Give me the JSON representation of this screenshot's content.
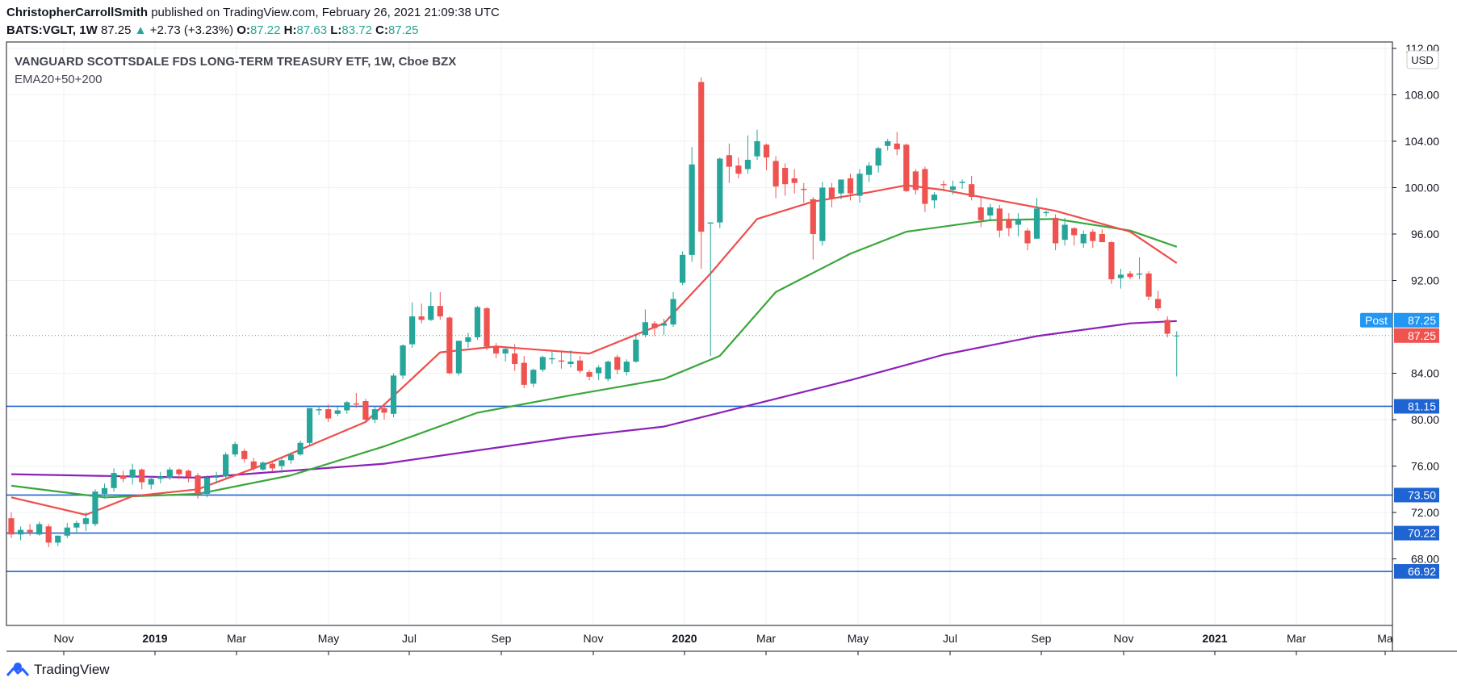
{
  "header": {
    "author": "ChristopherCarrollSmith",
    "published_text": "published on TradingView.com, February 26, 2021 21:09:38 UTC",
    "symbol_tf": "BATS:VGLT, 1W",
    "last": "87.25",
    "change": "+2.73 (+3.23%)",
    "o_label": "O:",
    "o": "87.22",
    "h_label": "H:",
    "h": "87.63",
    "l_label": "L:",
    "l": "83.72",
    "c_label": "C:",
    "c": "87.25"
  },
  "chart_data": {
    "type": "candlestick",
    "title": "VANGUARD SCOTTSDALE FDS LONG-TERM TREASURY ETF, 1W, Cboe BZX",
    "subtitle": "EMA20+50+200",
    "currency_label": "USD",
    "y_ticks": [
      "112.00",
      "108.00",
      "104.00",
      "100.00",
      "96.00",
      "92.00",
      "84.00",
      "80.00",
      "76.00",
      "72.00",
      "68.00"
    ],
    "x_ticks": [
      {
        "label": "Nov",
        "bold": false
      },
      {
        "label": "2019",
        "bold": true
      },
      {
        "label": "Mar",
        "bold": false
      },
      {
        "label": "May",
        "bold": false
      },
      {
        "label": "Jul",
        "bold": false
      },
      {
        "label": "Sep",
        "bold": false
      },
      {
        "label": "Nov",
        "bold": false
      },
      {
        "label": "2020",
        "bold": true
      },
      {
        "label": "Mar",
        "bold": false
      },
      {
        "label": "May",
        "bold": false
      },
      {
        "label": "Jul",
        "bold": false
      },
      {
        "label": "Sep",
        "bold": false
      },
      {
        "label": "Nov",
        "bold": false
      },
      {
        "label": "2021",
        "bold": true
      },
      {
        "label": "Mar",
        "bold": false
      },
      {
        "label": "Ma",
        "bold": false
      }
    ],
    "price_range": [
      64,
      113.5
    ],
    "horizontal_levels": [
      {
        "label": "81.15",
        "value": 81.15
      },
      {
        "label": "73.50",
        "value": 73.5
      },
      {
        "label": "70.22",
        "value": 70.22
      },
      {
        "label": "66.92",
        "value": 66.92
      }
    ],
    "post_label": "Post",
    "post_value": "87.25",
    "last_value": "87.25",
    "candles": [
      [
        71.5,
        72,
        69.8,
        70.1
      ],
      [
        70.1,
        70.8,
        69.6,
        70.5
      ],
      [
        70.5,
        71,
        70,
        70.3
      ],
      [
        70.1,
        71.2,
        70,
        71
      ],
      [
        70.8,
        71,
        69,
        69.4
      ],
      [
        69.4,
        70,
        69.1,
        70
      ],
      [
        70,
        71.1,
        69.8,
        70.7
      ],
      [
        70.7,
        71.3,
        70.2,
        71.1
      ],
      [
        71,
        72,
        70.4,
        71.5
      ],
      [
        71,
        74,
        70.8,
        73.8
      ],
      [
        73.6,
        74.5,
        73.2,
        74.1
      ],
      [
        74.1,
        75.8,
        73.8,
        75.4
      ],
      [
        75.2,
        75.6,
        74.6,
        74.9
      ],
      [
        75,
        76.2,
        74.4,
        75.7
      ],
      [
        75.7,
        75.8,
        74,
        74.6
      ],
      [
        74.4,
        75.1,
        74,
        74.9
      ],
      [
        74.9,
        75.5,
        74.5,
        75.1
      ],
      [
        75,
        75.9,
        74.8,
        75.7
      ],
      [
        75.7,
        75.8,
        74.9,
        75.3
      ],
      [
        75.6,
        75.7,
        74.6,
        75.1
      ],
      [
        75.2,
        75.4,
        73.2,
        73.6
      ],
      [
        73.6,
        75.2,
        73.3,
        75
      ],
      [
        75,
        75.5,
        74.5,
        75.1
      ],
      [
        75.1,
        77.2,
        74.9,
        77
      ],
      [
        77,
        78.1,
        76.8,
        77.9
      ],
      [
        77.3,
        77.5,
        76.3,
        76.6
      ],
      [
        76.4,
        76.7,
        75.6,
        75.8
      ],
      [
        75.7,
        76.4,
        75.6,
        76.3
      ],
      [
        76.2,
        76.3,
        75.5,
        75.8
      ],
      [
        76,
        76.7,
        75.4,
        76.5
      ],
      [
        76.5,
        77.1,
        76.2,
        77
      ],
      [
        77,
        78.2,
        76.9,
        78
      ],
      [
        78,
        81,
        77.8,
        81
      ],
      [
        80.8,
        81.2,
        80.4,
        80.9
      ],
      [
        80.9,
        81.3,
        79.8,
        80.1
      ],
      [
        80.5,
        81.1,
        80.3,
        80.8
      ],
      [
        80.8,
        81.6,
        80.5,
        81.5
      ],
      [
        81.4,
        82.3,
        81,
        81.3
      ],
      [
        81.6,
        81.8,
        79.8,
        80
      ],
      [
        80,
        81.1,
        79.7,
        80.9
      ],
      [
        81,
        81.3,
        80,
        80.6
      ],
      [
        80.5,
        84,
        80.2,
        83.8
      ],
      [
        83.8,
        86.5,
        83.5,
        86.4
      ],
      [
        86.5,
        90.1,
        86.2,
        88.9
      ],
      [
        88.9,
        90,
        88.3,
        88.6
      ],
      [
        88.6,
        91,
        88.5,
        89.8
      ],
      [
        89.8,
        91,
        88.6,
        88.9
      ],
      [
        88.8,
        88.9,
        83.9,
        84
      ],
      [
        84,
        86.8,
        83.8,
        86.8
      ],
      [
        86.7,
        87.5,
        86.2,
        87.1
      ],
      [
        87.1,
        89.8,
        86.9,
        89.7
      ],
      [
        89.6,
        89.7,
        86,
        86.3
      ],
      [
        86.3,
        86.6,
        85.3,
        85.7
      ],
      [
        85.7,
        86.3,
        85,
        86.1
      ],
      [
        85.7,
        86.5,
        84.2,
        84.8
      ],
      [
        84.9,
        85.5,
        82.7,
        83
      ],
      [
        83.1,
        84.4,
        82.8,
        84.3
      ],
      [
        84.3,
        85.5,
        84.1,
        85.4
      ],
      [
        85.2,
        85.9,
        84.8,
        85.3
      ],
      [
        85.1,
        85.8,
        84.4,
        85
      ],
      [
        84.8,
        86,
        84.5,
        85
      ],
      [
        85.1,
        85.5,
        84,
        84.2
      ],
      [
        84.1,
        84.3,
        83.4,
        83.7
      ],
      [
        84,
        84.7,
        83.4,
        84.5
      ],
      [
        83.5,
        85.1,
        83.3,
        85
      ],
      [
        85.4,
        85.6,
        83.9,
        84.3
      ],
      [
        84.1,
        85.2,
        83.8,
        85
      ],
      [
        85,
        87.3,
        84.9,
        86.9
      ],
      [
        87.3,
        89.5,
        87.1,
        88.4
      ],
      [
        88.3,
        88.5,
        87.2,
        87.9
      ],
      [
        88.1,
        88.7,
        87.3,
        88.3
      ],
      [
        88.2,
        91,
        88,
        90.4
      ],
      [
        91.8,
        94.5,
        91.6,
        94.2
      ],
      [
        94.2,
        103.5,
        93.6,
        102
      ],
      [
        109.1,
        109.5,
        93,
        96.2
      ],
      [
        96.9,
        96.9,
        85.5,
        97
      ],
      [
        97,
        102.6,
        96.5,
        102.5
      ],
      [
        102.8,
        103.8,
        100.4,
        101.8
      ],
      [
        101.9,
        102.6,
        100.8,
        101.2
      ],
      [
        101.6,
        104.5,
        101.2,
        102.4
      ],
      [
        102.7,
        105,
        102.4,
        104
      ],
      [
        103.7,
        103.8,
        101.5,
        102.6
      ],
      [
        102.3,
        102.7,
        99.1,
        100.1
      ],
      [
        101.7,
        102.1,
        99.3,
        100.3
      ],
      [
        100.8,
        101.6,
        99.5,
        100.4
      ],
      [
        99.9,
        100.4,
        98.7,
        99.8
      ],
      [
        99,
        99.2,
        93.8,
        96
      ],
      [
        95.4,
        100.5,
        95,
        100
      ],
      [
        100,
        100.4,
        98.3,
        99.1
      ],
      [
        99.5,
        100.6,
        99,
        100.7
      ],
      [
        100.8,
        101.2,
        98.9,
        99.5
      ],
      [
        99.3,
        101.6,
        98.7,
        101.2
      ],
      [
        101.1,
        102.2,
        100.5,
        101.9
      ],
      [
        101.9,
        103.5,
        101.3,
        103.4
      ],
      [
        103.6,
        104.2,
        103.2,
        104
      ],
      [
        103.8,
        104.8,
        102.8,
        103.3
      ],
      [
        103.7,
        103.8,
        99.6,
        99.7
      ],
      [
        101.4,
        101.6,
        99.4,
        99.8
      ],
      [
        101.6,
        101.8,
        97.9,
        98.6
      ],
      [
        98.9,
        99.6,
        98.2,
        99.4
      ],
      [
        100.3,
        100.6,
        99.7,
        100.2
      ],
      [
        99.8,
        100.6,
        99.4,
        100.1
      ],
      [
        100.4,
        100.7,
        99.9,
        100.5
      ],
      [
        100.3,
        101,
        98.9,
        99.2
      ],
      [
        98.3,
        99.2,
        96.6,
        97.2
      ],
      [
        97.6,
        98.6,
        97.2,
        98.3
      ],
      [
        98.2,
        98.5,
        95.7,
        96.3
      ],
      [
        97.3,
        97.8,
        95.8,
        96.5
      ],
      [
        96.8,
        97.8,
        95.8,
        97.2
      ],
      [
        96.3,
        96.5,
        94.6,
        95.2
      ],
      [
        95.6,
        99.1,
        95.6,
        98.2
      ],
      [
        97.8,
        98,
        97.5,
        97.9
      ],
      [
        97.4,
        97.7,
        94.6,
        95.2
      ],
      [
        95.5,
        97.4,
        95,
        96.8
      ],
      [
        96.5,
        96.6,
        95,
        95.9
      ],
      [
        95.2,
        96.3,
        94.8,
        96
      ],
      [
        96.2,
        96.4,
        94.8,
        95.4
      ],
      [
        96,
        96.4,
        95.3,
        95.3
      ],
      [
        95.3,
        95.4,
        91.7,
        92.1
      ],
      [
        92.2,
        93,
        91.3,
        92.5
      ],
      [
        92.6,
        92.8,
        92.1,
        92.3
      ],
      [
        92.5,
        94,
        92.1,
        92.6
      ],
      [
        92.6,
        92.8,
        90.3,
        90.6
      ],
      [
        90.4,
        91.1,
        89.4,
        89.6
      ],
      [
        88.6,
        88.9,
        87.1,
        87.4
      ],
      [
        87.22,
        87.63,
        83.72,
        87.25
      ]
    ],
    "ema20": [
      [
        0,
        73.3
      ],
      [
        8,
        71.8
      ],
      [
        13,
        73.4
      ],
      [
        20,
        74
      ],
      [
        28,
        76.4
      ],
      [
        38,
        79.8
      ],
      [
        46,
        85.8
      ],
      [
        52,
        86.3
      ],
      [
        62,
        85.7
      ],
      [
        70,
        88.3
      ],
      [
        75,
        92.6
      ],
      [
        80,
        97.3
      ],
      [
        86,
        98.8
      ],
      [
        92,
        99.6
      ],
      [
        96,
        100.2
      ],
      [
        100,
        99.8
      ],
      [
        112,
        98
      ],
      [
        120,
        96.2
      ],
      [
        125,
        93.5
      ]
    ],
    "ema50": [
      [
        0,
        74.3
      ],
      [
        10,
        73.3
      ],
      [
        20,
        73.6
      ],
      [
        30,
        75.2
      ],
      [
        40,
        77.7
      ],
      [
        50,
        80.6
      ],
      [
        60,
        82.1
      ],
      [
        70,
        83.5
      ],
      [
        76,
        85.5
      ],
      [
        82,
        91
      ],
      [
        90,
        94.3
      ],
      [
        96,
        96.2
      ],
      [
        105,
        97.2
      ],
      [
        112,
        97.3
      ],
      [
        120,
        96.3
      ],
      [
        125,
        94.9
      ]
    ],
    "ema200": [
      [
        0,
        75.3
      ],
      [
        20,
        75
      ],
      [
        40,
        76.2
      ],
      [
        60,
        78.5
      ],
      [
        70,
        79.4
      ],
      [
        80,
        81.4
      ],
      [
        90,
        83.4
      ],
      [
        100,
        85.6
      ],
      [
        110,
        87.2
      ],
      [
        120,
        88.3
      ],
      [
        125,
        88.5
      ]
    ]
  },
  "footer": {
    "brand": "TradingView"
  }
}
